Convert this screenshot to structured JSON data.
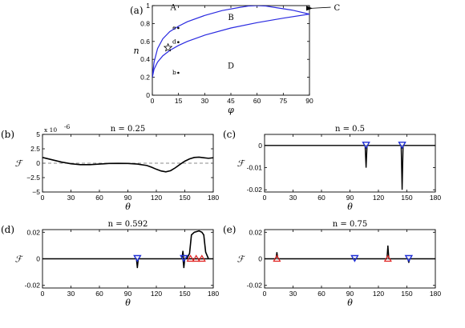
{
  "chart_data": [
    {
      "id": "a",
      "type": "line",
      "panel_label": "(a)",
      "xlabel": "φ",
      "ylabel": "n",
      "xlim": [
        0,
        90
      ],
      "ylim": [
        0,
        1
      ],
      "xticks": [
        0,
        15,
        30,
        45,
        60,
        75,
        90
      ],
      "yticks": [
        0,
        0.2,
        0.4,
        0.6,
        0.8,
        1
      ],
      "ytick_labels": [
        "0",
        "0.2",
        "0.4",
        "0.6",
        "0.8",
        "1"
      ],
      "series": [
        {
          "x": [
            0,
            1,
            3,
            6,
            10,
            15,
            20,
            30,
            40,
            50,
            55,
            60,
            65,
            70,
            80,
            90
          ],
          "y": [
            0.2,
            0.37,
            0.52,
            0.63,
            0.71,
            0.77,
            0.82,
            0.89,
            0.945,
            0.98,
            0.995,
            1.0,
            0.995,
            0.98,
            0.95,
            0.905
          ]
        },
        {
          "x": [
            0,
            1,
            3,
            6,
            10,
            15,
            20,
            30,
            45,
            60,
            75,
            90
          ],
          "y": [
            0.2,
            0.29,
            0.37,
            0.44,
            0.5,
            0.555,
            0.6,
            0.67,
            0.75,
            0.81,
            0.86,
            0.905
          ]
        }
      ],
      "regions": [
        {
          "text": "A",
          "x": 12,
          "y": 0.95
        },
        {
          "text": "B",
          "x": 45,
          "y": 0.84
        },
        {
          "text": "D",
          "x": 45,
          "y": 0.3
        },
        {
          "text": "C",
          "label_x": 104,
          "label_y": 0.955,
          "arrow_x": 90,
          "arrow_y": 0.97
        }
      ],
      "points": [
        {
          "text": "e",
          "x": 13.5,
          "y": 0.75
        },
        {
          "text": "d",
          "x": 13.5,
          "y": 0.592
        },
        {
          "text": "b",
          "x": 13.5,
          "y": 0.25
        }
      ],
      "star": {
        "x": 9,
        "y": 0.53
      }
    },
    {
      "id": "b",
      "type": "line",
      "panel_label": "(b)",
      "title": "n = 0.25",
      "ylabel": "ℱ",
      "xlabel": "θ",
      "multiplier": "x 10",
      "multiplier_exp": "-6",
      "xlim": [
        0,
        180
      ],
      "ylim": [
        -5,
        5
      ],
      "xticks": [
        0,
        30,
        60,
        90,
        120,
        150,
        180
      ],
      "yticks": [
        -5,
        -2.5,
        0,
        2.5,
        5
      ],
      "ytick_labels": [
        "−5",
        "−2.5",
        "0",
        "2.5",
        "5"
      ],
      "dashed_zero": true,
      "series": [
        {
          "x": [
            0,
            10,
            20,
            30,
            40,
            50,
            60,
            70,
            80,
            90,
            100,
            110,
            115,
            120,
            125,
            130,
            135,
            140,
            145,
            150,
            155,
            160,
            165,
            170,
            175,
            180
          ],
          "y": [
            1.0,
            0.6,
            0.2,
            -0.1,
            -0.25,
            -0.25,
            -0.15,
            -0.05,
            -0.02,
            -0.05,
            -0.15,
            -0.4,
            -0.7,
            -1.05,
            -1.35,
            -1.5,
            -1.3,
            -0.8,
            -0.2,
            0.35,
            0.75,
            1.0,
            1.05,
            0.95,
            0.85,
            0.95
          ]
        }
      ]
    },
    {
      "id": "c",
      "type": "line",
      "panel_label": "(c)",
      "title": "n = 0.5",
      "ylabel": "ℱ",
      "xlabel": "θ",
      "xlim": [
        0,
        180
      ],
      "ylim": [
        -0.021,
        0.005
      ],
      "xticks": [
        0,
        30,
        60,
        90,
        120,
        150,
        180
      ],
      "yticks": [
        0,
        -0.01,
        -0.02
      ],
      "ytick_labels": [
        "0",
        "-0.01",
        "-0.02"
      ],
      "spikes": [
        {
          "x": 107,
          "y": -0.01
        },
        {
          "x": 145,
          "y": -0.02
        }
      ],
      "markers_down": [
        107,
        145
      ],
      "markers_up": []
    },
    {
      "id": "d",
      "type": "line",
      "panel_label": "(d)",
      "title": "n = 0.592",
      "ylabel": "ℱ",
      "xlabel": "θ",
      "xlim": [
        0,
        180
      ],
      "ylim": [
        -0.022,
        0.022
      ],
      "xticks": [
        0,
        30,
        60,
        90,
        120,
        150,
        180
      ],
      "yticks": [
        0.02,
        0,
        -0.02
      ],
      "ytick_labels": [
        "0.02",
        "0",
        "-0.02"
      ],
      "spikes": [
        {
          "x": 100,
          "y": -0.007
        },
        {
          "x": 148,
          "y": 0.006
        },
        {
          "x": 149,
          "y": -0.007
        }
      ],
      "plateau": {
        "x": [
          152,
          155,
          157,
          160,
          165,
          168,
          170,
          172,
          175
        ],
        "y": [
          0,
          0.004,
          0.018,
          0.02,
          0.021,
          0.02,
          0.018,
          0.005,
          0
        ]
      },
      "markers_down": [
        100,
        149
      ],
      "markers_up": [
        156,
        162,
        168
      ]
    },
    {
      "id": "e",
      "type": "line",
      "panel_label": "(e)",
      "title": "n = 0.75",
      "ylabel": "ℱ",
      "xlabel": "θ",
      "xlim": [
        0,
        180
      ],
      "ylim": [
        -0.022,
        0.022
      ],
      "xticks": [
        0,
        30,
        60,
        90,
        120,
        150,
        180
      ],
      "yticks": [
        0.02,
        0,
        -0.02
      ],
      "ytick_labels": [
        "0.02",
        "0",
        "-0.02"
      ],
      "spikes": [
        {
          "x": 13,
          "y": 0.005
        },
        {
          "x": 130,
          "y": 0.01
        },
        {
          "x": 152,
          "y": -0.003
        }
      ],
      "markers_down": [
        95,
        152
      ],
      "markers_up": [
        13,
        130
      ]
    }
  ]
}
